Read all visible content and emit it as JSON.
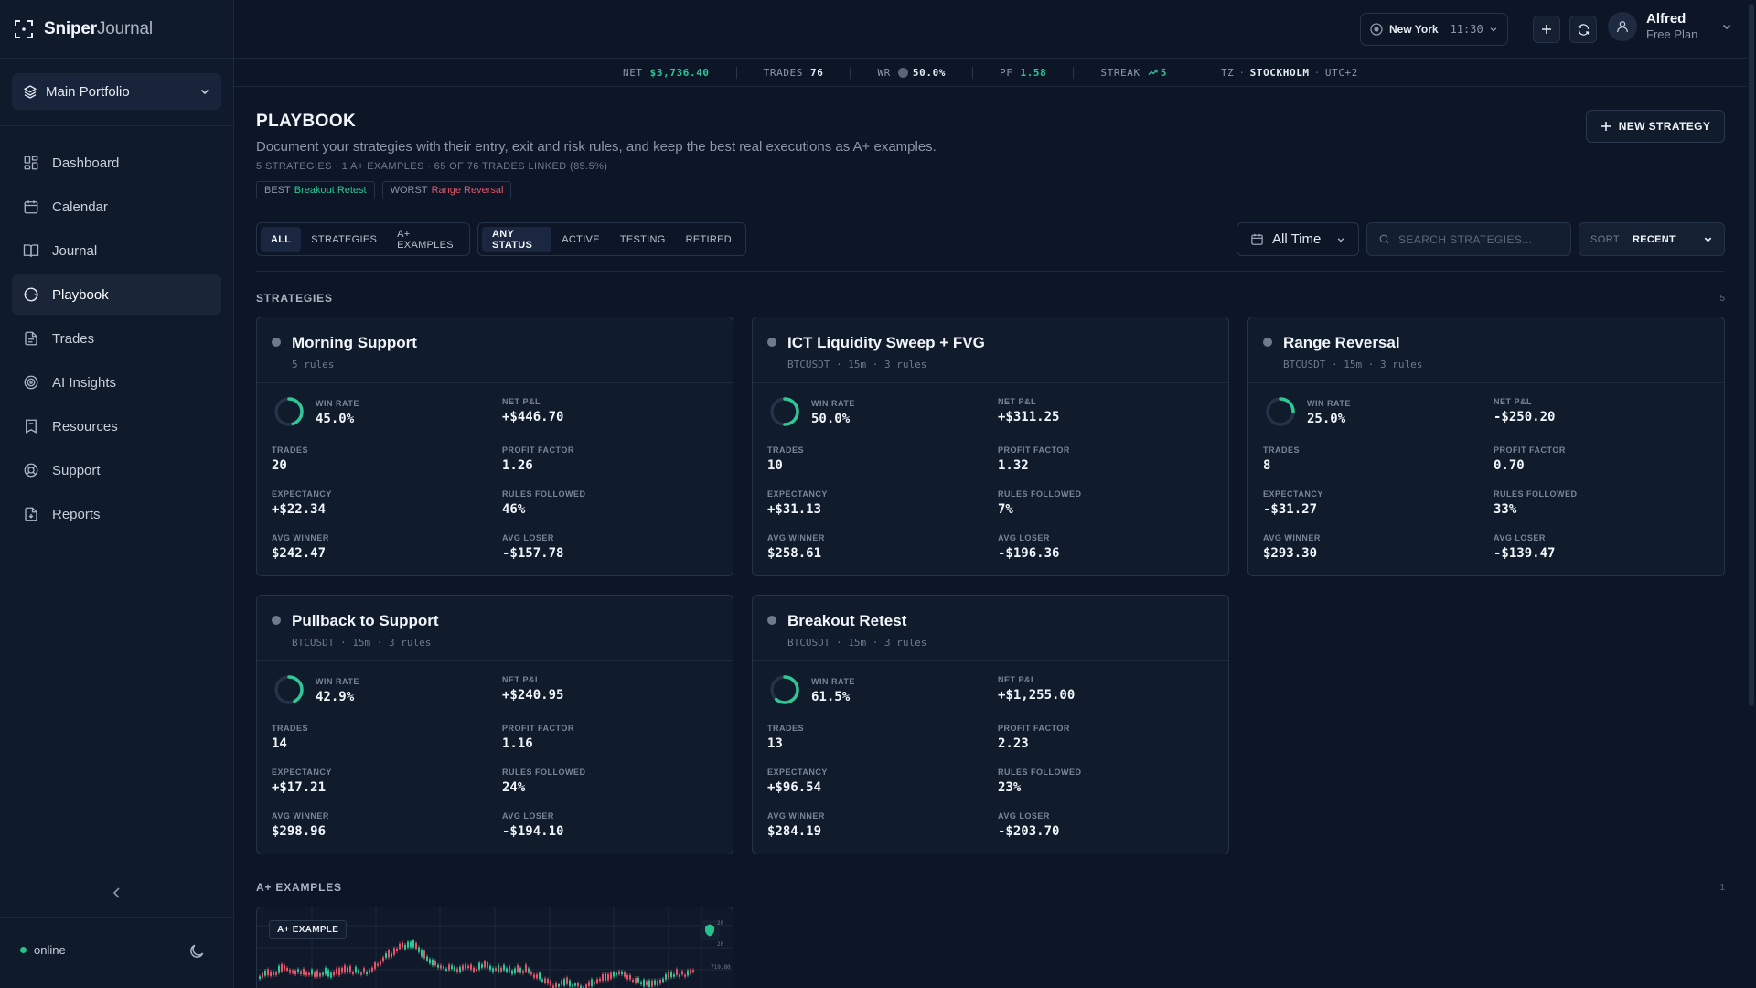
{
  "app": {
    "logo_bold": "Sniper",
    "logo_light": "Journal"
  },
  "sidebar": {
    "portfolio": "Main Portfolio",
    "items": [
      {
        "label": "Dashboard",
        "icon": "dashboard-icon"
      },
      {
        "label": "Calendar",
        "icon": "calendar-icon"
      },
      {
        "label": "Journal",
        "icon": "book-icon"
      },
      {
        "label": "Playbook",
        "icon": "playbook-icon",
        "active": true
      },
      {
        "label": "Trades",
        "icon": "file-icon"
      },
      {
        "label": "AI Insights",
        "icon": "target-icon"
      },
      {
        "label": "Resources",
        "icon": "bookmark-icon"
      },
      {
        "label": "Support",
        "icon": "lifebuoy-icon"
      },
      {
        "label": "Reports",
        "icon": "report-icon"
      }
    ],
    "status": "online"
  },
  "topbar": {
    "city": "New York",
    "time": "11:30",
    "user_name": "Alfred",
    "user_plan": "Free Plan"
  },
  "stats": {
    "net_label": "NET",
    "net_value": "$3,736.40",
    "trades_label": "TRADES",
    "trades_value": "76",
    "wr_label": "WR",
    "wr_value": "50.0%",
    "pf_label": "PF",
    "pf_value": "1.58",
    "streak_label": "STREAK",
    "streak_value": "5",
    "tz_label": "TZ",
    "tz_city": "STOCKHOLM",
    "tz_offset": "UTC+2"
  },
  "page": {
    "title": "PLAYBOOK",
    "subtitle": "Document your strategies with their entry, exit and risk rules, and keep the best real executions as A+ examples.",
    "meta": "5 STRATEGIES · 1 A+ EXAMPLES · 65 OF 76 TRADES LINKED (85.5%)",
    "best_label": "BEST",
    "best_value": "Breakout Retest",
    "worst_label": "WORST",
    "worst_value": "Range Reversal",
    "new_button": "NEW STRATEGY"
  },
  "filters": {
    "type_tabs": [
      "ALL",
      "STRATEGIES",
      "A+ EXAMPLES"
    ],
    "status_tabs": [
      "ANY STATUS",
      "ACTIVE",
      "TESTING",
      "RETIRED"
    ],
    "time_range": "All Time",
    "search_placeholder": "SEARCH STRATEGIES...",
    "sort_label": "SORT",
    "sort_value": "RECENT"
  },
  "sections": {
    "strategies_title": "STRATEGIES",
    "strategies_count": "5",
    "examples_title": "A+ EXAMPLES",
    "examples_count": "1"
  },
  "labels": {
    "win_rate": "WIN RATE",
    "net_pnl": "NET P&L",
    "trades": "TRADES",
    "profit_factor": "PROFIT FACTOR",
    "expectancy": "EXPECTANCY",
    "rules_followed": "RULES FOLLOWED",
    "avg_winner": "AVG WINNER",
    "avg_loser": "AVG LOSER"
  },
  "strategies": [
    {
      "name": "Morning Support",
      "meta": "5 rules",
      "win_rate": "45.0%",
      "win_rate_value": 45.0,
      "net_pnl": "+$446.70",
      "trades": "20",
      "profit_factor": "1.26",
      "expectancy": "+$22.34",
      "rules_followed": "46%",
      "avg_winner": "$242.47",
      "avg_loser": "-$157.78"
    },
    {
      "name": "ICT Liquidity Sweep + FVG",
      "meta": "BTCUSDT · 15m · 3 rules",
      "win_rate": "50.0%",
      "win_rate_value": 50.0,
      "net_pnl": "+$311.25",
      "trades": "10",
      "profit_factor": "1.32",
      "expectancy": "+$31.13",
      "rules_followed": "7%",
      "avg_winner": "$258.61",
      "avg_loser": "-$196.36"
    },
    {
      "name": "Range Reversal",
      "meta": "BTCUSDT · 15m · 3 rules",
      "win_rate": "25.0%",
      "win_rate_value": 25.0,
      "net_pnl": "-$250.20",
      "trades": "8",
      "profit_factor": "0.70",
      "expectancy": "-$31.27",
      "rules_followed": "33%",
      "avg_winner": "$293.30",
      "avg_loser": "-$139.47"
    },
    {
      "name": "Pullback to Support",
      "meta": "BTCUSDT · 15m · 3 rules",
      "win_rate": "42.9%",
      "win_rate_value": 42.9,
      "net_pnl": "+$240.95",
      "trades": "14",
      "profit_factor": "1.16",
      "expectancy": "+$17.21",
      "rules_followed": "24%",
      "avg_winner": "$298.96",
      "avg_loser": "-$194.10"
    },
    {
      "name": "Breakout Retest",
      "meta": "BTCUSDT · 15m · 3 rules",
      "win_rate": "61.5%",
      "win_rate_value": 61.5,
      "net_pnl": "+$1,255.00",
      "trades": "13",
      "profit_factor": "2.23",
      "expectancy": "+$96.54",
      "rules_followed": "23%",
      "avg_winner": "$284.19",
      "avg_loser": "-$203.70"
    }
  ],
  "example": {
    "tag": "A+ EXAMPLE",
    "axis_top": "20",
    "axis_mid": "20",
    "axis_low": "719.80"
  },
  "colors": {
    "accent_green": "#2ec796",
    "loss_red": "#e2566a",
    "bg": "#0d1626",
    "card": "#101b2c"
  }
}
